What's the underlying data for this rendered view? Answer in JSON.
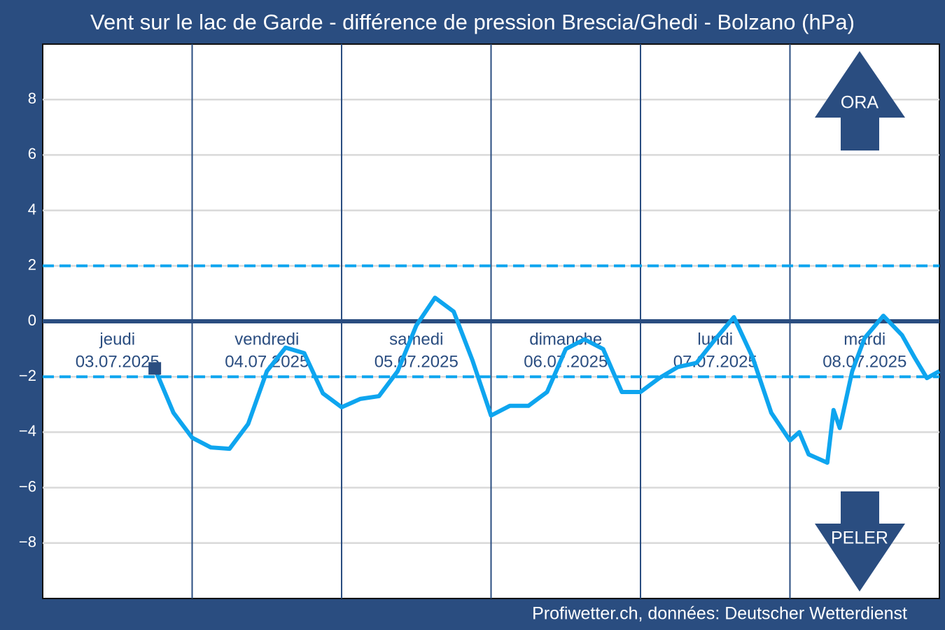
{
  "chart_data": {
    "type": "line",
    "title": "Vent sur le lac de Garde - différence de pression Brescia/Ghedi - Bolzano (hPa)",
    "source": "Profiwetter.ch, données: Deutscher Wetterdienst",
    "days": [
      {
        "name": "jeudi",
        "date": "03.07.2025"
      },
      {
        "name": "vendredi",
        "date": "04.07.2025"
      },
      {
        "name": "samedi",
        "date": "05.07.2025"
      },
      {
        "name": "dimanche",
        "date": "06.07.2025"
      },
      {
        "name": "lundi",
        "date": "07.07.2025"
      },
      {
        "name": "mardi",
        "date": "08.07.2025"
      }
    ],
    "annotations": {
      "up": "ORA",
      "down": "PELER"
    },
    "x": [
      18,
      21,
      24,
      27,
      30,
      33,
      36,
      39,
      42,
      45,
      48,
      51,
      54,
      57,
      60,
      63,
      66,
      69,
      72,
      75,
      78,
      81,
      84,
      87,
      90,
      93,
      96,
      99,
      102,
      105,
      108,
      111,
      114,
      117,
      120,
      121.5,
      123,
      126,
      127,
      128,
      130,
      132,
      135,
      138,
      140,
      142,
      144
    ],
    "series": [
      {
        "color": "#0ea5ef",
        "values": [
          -1.7,
          -3.3,
          -4.2,
          -4.55,
          -4.6,
          -3.7,
          -1.8,
          -0.95,
          -1.15,
          -2.6,
          -3.1,
          -2.8,
          -2.7,
          -1.8,
          -0.15,
          0.85,
          0.35,
          -1.4,
          -3.4,
          -3.05,
          -3.05,
          -2.55,
          -1.0,
          -0.65,
          -1.0,
          -2.55,
          -2.55,
          -2.05,
          -1.65,
          -1.5,
          -0.65,
          0.15,
          -1.3,
          -3.3,
          -4.3,
          -4.0,
          -4.8,
          -5.1,
          -3.2,
          -3.85,
          -1.8,
          -0.6,
          0.2,
          -0.5,
          -1.3,
          -2.05,
          -1.8
        ]
      }
    ],
    "xlim": [
      0,
      144
    ],
    "ylim": [
      -10,
      10
    ],
    "yticks": [
      {
        "value": -8,
        "label": "−8"
      },
      {
        "value": -6,
        "label": "−6"
      },
      {
        "value": -4,
        "label": "−4"
      },
      {
        "value": -2,
        "label": "−2"
      },
      0,
      2,
      4,
      6,
      8
    ],
    "grid": true,
    "reference_lines": [
      {
        "value": 0,
        "color": "#2a4d80",
        "dashed": false
      },
      {
        "value": 2,
        "color": "#0ea5ef",
        "dashed": true
      },
      {
        "value": -2,
        "color": "#0ea5ef",
        "dashed": true
      }
    ]
  }
}
